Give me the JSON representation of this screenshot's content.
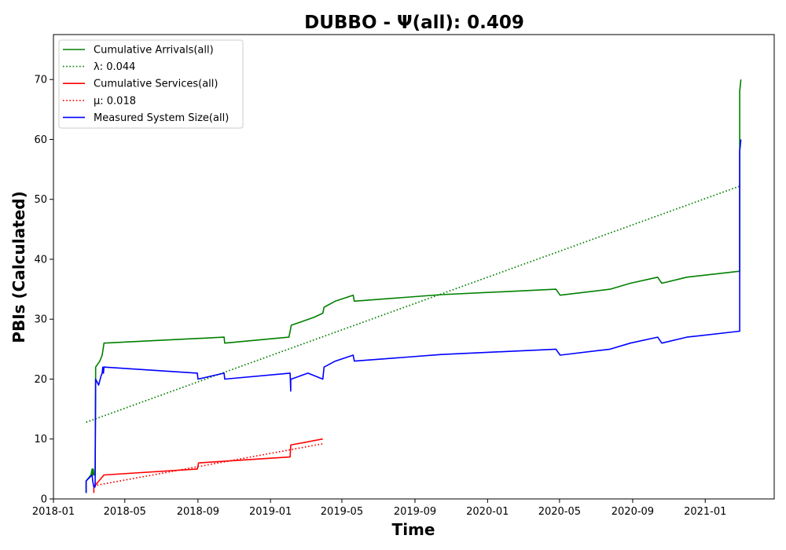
{
  "chart_data": {
    "type": "line",
    "title": "DUBBO -  Ψ(all): 0.409",
    "xlabel": "Time",
    "ylabel": "PBIs (Calculated)",
    "x_type": "date",
    "xlim": [
      "2018-01-01",
      "2021-04-27"
    ],
    "ylim": [
      0,
      77.5
    ],
    "x_ticks": [
      "2018-01",
      "2018-05",
      "2018-09",
      "2019-01",
      "2019-05",
      "2019-09",
      "2020-01",
      "2020-05",
      "2020-09",
      "2021-01"
    ],
    "y_ticks": [
      0,
      10,
      20,
      30,
      40,
      50,
      60,
      70
    ],
    "grid": false,
    "legend_position": "top-left",
    "series": [
      {
        "name": "Cumulative Arrivals(all)",
        "color": "#008000",
        "style": "solid",
        "points": [
          [
            "2018-02-25",
            1
          ],
          [
            "2018-02-25",
            3
          ],
          [
            "2018-03-05",
            4
          ],
          [
            "2018-03-07",
            5
          ],
          [
            "2018-03-08",
            4
          ],
          [
            "2018-03-09",
            5
          ],
          [
            "2018-03-10",
            4
          ],
          [
            "2018-03-12",
            4
          ],
          [
            "2018-03-13",
            22
          ],
          [
            "2018-03-20",
            23
          ],
          [
            "2018-03-24",
            24
          ],
          [
            "2018-03-27",
            26
          ],
          [
            "2018-10-15",
            27
          ],
          [
            "2018-10-16",
            26
          ],
          [
            "2019-02-01",
            27
          ],
          [
            "2019-02-05",
            29
          ],
          [
            "2019-02-20",
            29.5
          ],
          [
            "2019-03-15",
            30.3
          ],
          [
            "2019-03-30",
            31
          ],
          [
            "2019-04-01",
            32
          ],
          [
            "2019-04-20",
            33
          ],
          [
            "2019-05-20",
            34
          ],
          [
            "2019-05-22",
            33
          ],
          [
            "2019-10-15",
            34.1
          ],
          [
            "2020-04-25",
            35
          ],
          [
            "2020-05-02",
            34
          ],
          [
            "2020-07-25",
            35
          ],
          [
            "2020-08-28",
            36
          ],
          [
            "2020-10-13",
            37
          ],
          [
            "2020-10-20",
            36
          ],
          [
            "2020-12-01",
            37
          ],
          [
            "2021-02-28",
            38
          ],
          [
            "2021-02-28",
            68
          ],
          [
            "2021-03-02",
            70
          ]
        ]
      },
      {
        "name": "λ: 0.044",
        "color": "#008000",
        "style": "dotted",
        "points": [
          [
            "2018-02-25",
            12.8
          ],
          [
            "2021-02-28",
            52.2
          ]
        ]
      },
      {
        "name": "Cumulative Services(all)",
        "color": "#ff0000",
        "style": "solid",
        "points": [
          [
            "2018-03-10",
            1
          ],
          [
            "2018-03-10",
            2
          ],
          [
            "2018-03-27",
            4
          ],
          [
            "2018-08-31",
            5
          ],
          [
            "2018-09-02",
            6
          ],
          [
            "2019-02-03",
            7
          ],
          [
            "2019-02-04",
            9
          ],
          [
            "2019-03-30",
            10
          ]
        ]
      },
      {
        "name": "μ: 0.018",
        "color": "#ff0000",
        "style": "dotted",
        "points": [
          [
            "2018-03-10",
            2.2
          ],
          [
            "2019-03-30",
            9.2
          ]
        ]
      },
      {
        "name": "Measured System Size(all)",
        "color": "#0000ff",
        "style": "solid",
        "points": [
          [
            "2018-02-25",
            1
          ],
          [
            "2018-02-25",
            3
          ],
          [
            "2018-03-07",
            4
          ],
          [
            "2018-03-08",
            3
          ],
          [
            "2018-03-10",
            2
          ],
          [
            "2018-03-12",
            2
          ],
          [
            "2018-03-13",
            20
          ],
          [
            "2018-03-18",
            19
          ],
          [
            "2018-03-22",
            20.5
          ],
          [
            "2018-03-24",
            21
          ],
          [
            "2018-03-25",
            22
          ],
          [
            "2018-03-26",
            21
          ],
          [
            "2018-03-27",
            22
          ],
          [
            "2018-08-31",
            21
          ],
          [
            "2018-09-01",
            20
          ],
          [
            "2018-10-15",
            21
          ],
          [
            "2018-10-16",
            20
          ],
          [
            "2019-02-03",
            21
          ],
          [
            "2019-02-04",
            18
          ],
          [
            "2019-02-04",
            20
          ],
          [
            "2019-02-05",
            20
          ],
          [
            "2019-03-05",
            21
          ],
          [
            "2019-03-30",
            20
          ],
          [
            "2019-04-01",
            22
          ],
          [
            "2019-04-20",
            23
          ],
          [
            "2019-05-20",
            24
          ],
          [
            "2019-05-22",
            23
          ],
          [
            "2019-10-15",
            24.1
          ],
          [
            "2020-04-25",
            25
          ],
          [
            "2020-05-02",
            24
          ],
          [
            "2020-07-25",
            25
          ],
          [
            "2020-08-28",
            26
          ],
          [
            "2020-10-13",
            27
          ],
          [
            "2020-10-20",
            26
          ],
          [
            "2020-12-01",
            27
          ],
          [
            "2021-02-28",
            28
          ],
          [
            "2021-02-28",
            58
          ],
          [
            "2021-03-02",
            60
          ]
        ]
      }
    ]
  }
}
